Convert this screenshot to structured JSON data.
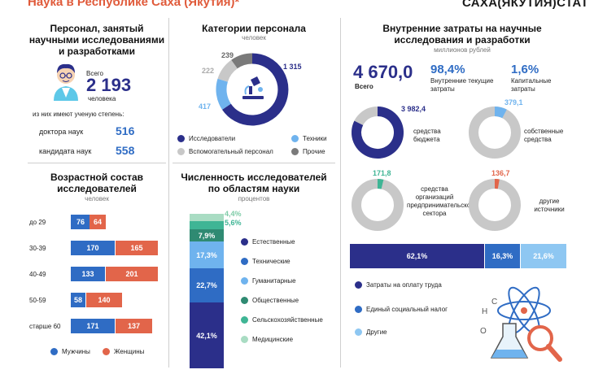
{
  "header": {
    "title": "Наука в Республике Саха (Якутия)*",
    "logo": "САХА(ЯКУТИЯ)СТАТ"
  },
  "personnel": {
    "heading": "Персонал, занятый научными исследованиями и разработками",
    "total_label": "Всего",
    "total_value": "2 193",
    "unit": "человека",
    "degree_note": "из них имеют ученую степень:",
    "doctors_label": "доктора наук",
    "doctors_value": "516",
    "candidates_label": "кандидата наук",
    "candidates_value": "558"
  },
  "categories": {
    "heading": "Категории персонала",
    "unit": "человек",
    "labels": {
      "researchers": "1 315",
      "technicians": "417",
      "support": "222",
      "other": "239"
    },
    "legend": [
      "Исследователи",
      "Техники",
      "Вспомогательный персонал",
      "Прочие"
    ],
    "colors": {
      "researchers": "#2b2f8a",
      "technicians": "#6fb3ee",
      "support": "#c8c8c8",
      "other": "#7a7a7a"
    }
  },
  "age": {
    "heading": "Возрастной состав исследователей",
    "unit": "человек",
    "groups": [
      {
        "label": "до 29",
        "men": "76",
        "women": "64"
      },
      {
        "label": "30-39",
        "men": "170",
        "women": "165"
      },
      {
        "label": "40-49",
        "men": "133",
        "women": "201"
      },
      {
        "label": "50-59",
        "men": "58",
        "women": "140"
      },
      {
        "label": "старше 60",
        "men": "171",
        "women": "137"
      }
    ],
    "legend_men": "Мужчины",
    "legend_women": "Женщины"
  },
  "fields": {
    "heading": "Численность исследователей по областям науки",
    "unit": "процентов",
    "segments": [
      {
        "label": "4,4%",
        "name": "Медицинские",
        "color": "#a9dcc3"
      },
      {
        "label": "5,6%",
        "name": "Сельскохозяйственные",
        "color": "#3fb595"
      },
      {
        "label": "7,9%",
        "name": "Общественные",
        "color": "#2f8a72"
      },
      {
        "label": "17,3%",
        "name": "Гуманитарные",
        "color": "#6fb3ee"
      },
      {
        "label": "22,7%",
        "name": "Технические",
        "color": "#2f6cc4"
      },
      {
        "label": "42,1%",
        "name": "Естественные",
        "color": "#2b2f8a"
      }
    ]
  },
  "costs": {
    "heading": "Внутренние затраты на научные исследования и разработки",
    "unit": "миллионов рублей",
    "total_value": "4 670,0",
    "total_label": "Всего",
    "current_pct": "98,4%",
    "current_label": "Внутренние текущие затраты",
    "capital_pct": "1,6%",
    "capital_label": "Капитальные затраты",
    "donuts": [
      {
        "value": "3 982,4",
        "label": "средства бюджета"
      },
      {
        "value": "379,1",
        "label": "собственные средства"
      },
      {
        "value": "171,8",
        "label": "средства организаций предпринимательского сектора"
      },
      {
        "value": "136,7",
        "label": "другие источники"
      }
    ],
    "structure": [
      {
        "label": "62,1%",
        "name": "Затраты на оплату труда",
        "color": "#2b2f8a"
      },
      {
        "label": "16,3%",
        "name": "Единый социальный налог",
        "color": "#2f6cc4"
      },
      {
        "label": "21,6%",
        "name": "Другие",
        "color": "#8ec7f2"
      }
    ]
  }
}
